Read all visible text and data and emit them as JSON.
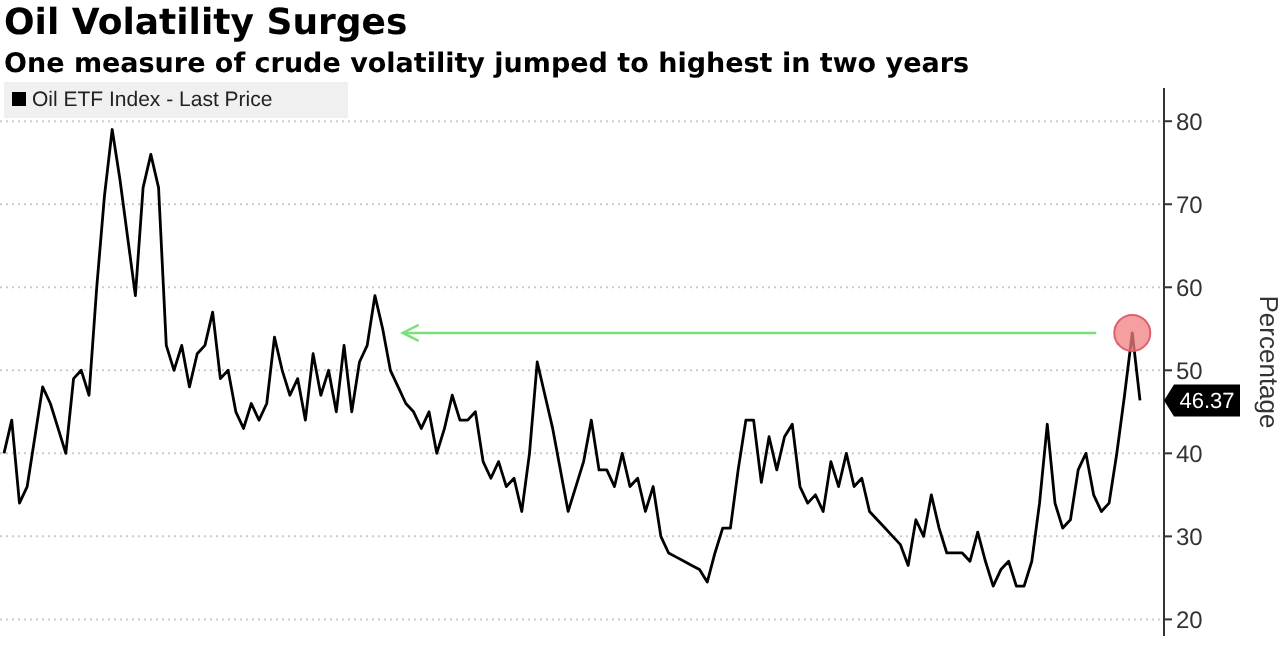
{
  "chart_data": {
    "type": "line",
    "title": "Oil Volatility Surges",
    "subtitle": "One measure of crude volatility jumped to highest in two years",
    "ylabel": "Percentage",
    "categories": [
      null,
      null,
      null,
      null,
      null,
      null,
      null,
      null,
      null,
      null,
      null,
      null,
      null,
      null,
      null,
      null,
      null,
      null,
      null,
      null,
      null,
      null,
      null,
      null,
      null,
      null,
      null,
      null,
      null,
      null,
      null,
      null,
      null,
      null,
      null,
      null,
      null,
      null,
      null,
      null,
      null,
      null,
      null,
      null,
      null,
      null,
      null,
      null,
      null,
      null,
      null,
      null,
      null,
      null,
      null,
      null,
      null,
      null,
      null,
      null,
      null,
      null,
      null,
      null,
      null,
      null,
      null,
      null,
      null,
      null,
      null,
      null,
      null,
      null,
      null,
      null,
      null,
      null,
      null,
      null,
      null,
      null,
      null,
      null,
      null,
      null,
      null,
      null,
      null,
      null,
      null,
      null,
      null,
      null,
      null,
      null,
      null,
      null,
      null,
      null,
      null,
      null,
      null,
      null,
      null,
      null,
      null,
      null,
      null,
      null,
      null,
      null,
      null,
      null,
      null,
      null,
      null,
      null,
      null,
      null,
      null,
      null,
      null,
      null,
      null,
      null,
      null,
      null,
      null,
      null,
      null,
      null,
      null,
      null,
      null,
      null,
      null,
      null,
      null,
      null,
      null,
      null,
      null,
      null,
      null,
      null,
      null,
      null
    ],
    "series": [
      {
        "name": "Oil ETF Index - Last Price",
        "color": "#000000",
        "values": [
          40,
          44,
          34,
          36,
          42,
          48,
          46,
          43,
          40,
          49,
          50,
          47,
          60,
          71,
          79,
          73,
          66,
          59,
          72,
          76,
          72,
          53,
          50,
          53,
          48,
          52,
          53,
          57,
          49,
          50,
          45,
          43,
          46,
          44,
          46,
          54,
          50,
          47,
          49,
          44,
          52,
          47,
          50,
          45,
          53,
          45,
          51,
          53,
          59,
          55,
          50,
          48,
          46,
          45,
          43,
          45,
          40,
          43,
          47,
          44,
          44,
          45,
          39,
          37,
          39,
          36,
          37,
          33,
          40,
          51,
          47,
          43,
          38,
          33,
          36,
          39,
          44,
          38,
          38,
          36,
          40,
          36,
          37,
          33,
          36,
          30,
          28,
          27.5,
          27,
          26.5,
          26,
          24.5,
          28,
          31,
          31,
          38,
          44,
          44,
          36.5,
          42,
          38,
          42,
          43.5,
          36,
          34,
          35,
          33,
          39,
          36,
          40,
          36,
          37,
          33,
          32,
          31,
          30,
          29,
          26.5,
          32,
          30,
          35,
          31,
          28,
          28,
          28,
          27,
          30.5,
          27,
          24,
          26,
          27,
          24,
          24,
          27,
          34,
          43.5,
          34,
          31,
          32,
          38,
          40,
          35,
          33,
          34,
          40,
          47,
          54.5,
          46.37
        ],
        "value_labels": [
          null,
          null,
          null,
          null,
          null,
          null,
          null,
          null,
          null,
          null,
          null,
          null,
          null,
          null,
          null,
          null,
          null,
          null,
          null,
          null,
          null,
          null,
          null,
          null,
          null,
          null,
          null,
          null,
          null,
          null,
          null,
          null,
          null,
          null,
          null,
          null,
          null,
          null,
          null,
          null,
          null,
          null,
          null,
          null,
          null,
          null,
          null,
          null,
          null,
          null,
          null,
          null,
          null,
          null,
          null,
          null,
          null,
          null,
          null,
          null,
          null,
          null,
          null,
          null,
          null,
          null,
          null,
          null,
          null,
          null,
          null,
          null,
          null,
          null,
          null,
          null,
          null,
          null,
          null,
          null,
          null,
          null,
          null,
          null,
          null,
          null,
          null,
          null,
          null,
          null,
          null,
          null,
          null,
          null,
          null,
          null,
          null,
          null,
          null,
          null,
          null,
          null,
          null,
          null,
          null,
          null,
          null,
          null,
          null,
          null,
          null,
          null,
          null,
          null,
          null,
          null,
          null,
          null,
          null,
          null,
          null,
          null,
          null,
          null,
          null,
          null,
          null,
          null,
          null,
          null,
          null,
          null,
          null,
          null,
          null,
          null,
          null,
          null,
          null,
          null,
          null,
          null,
          null,
          null,
          null,
          null,
          null,
          "46.37"
        ]
      }
    ],
    "ref_lines": [
      {
        "axis": "y",
        "value": 54.5,
        "color": "#7be07b"
      }
    ],
    "ylim": [
      18,
      84
    ],
    "yticks": [
      20,
      30,
      40,
      50,
      60,
      70,
      80
    ],
    "grid": "y",
    "legend": "top left"
  }
}
